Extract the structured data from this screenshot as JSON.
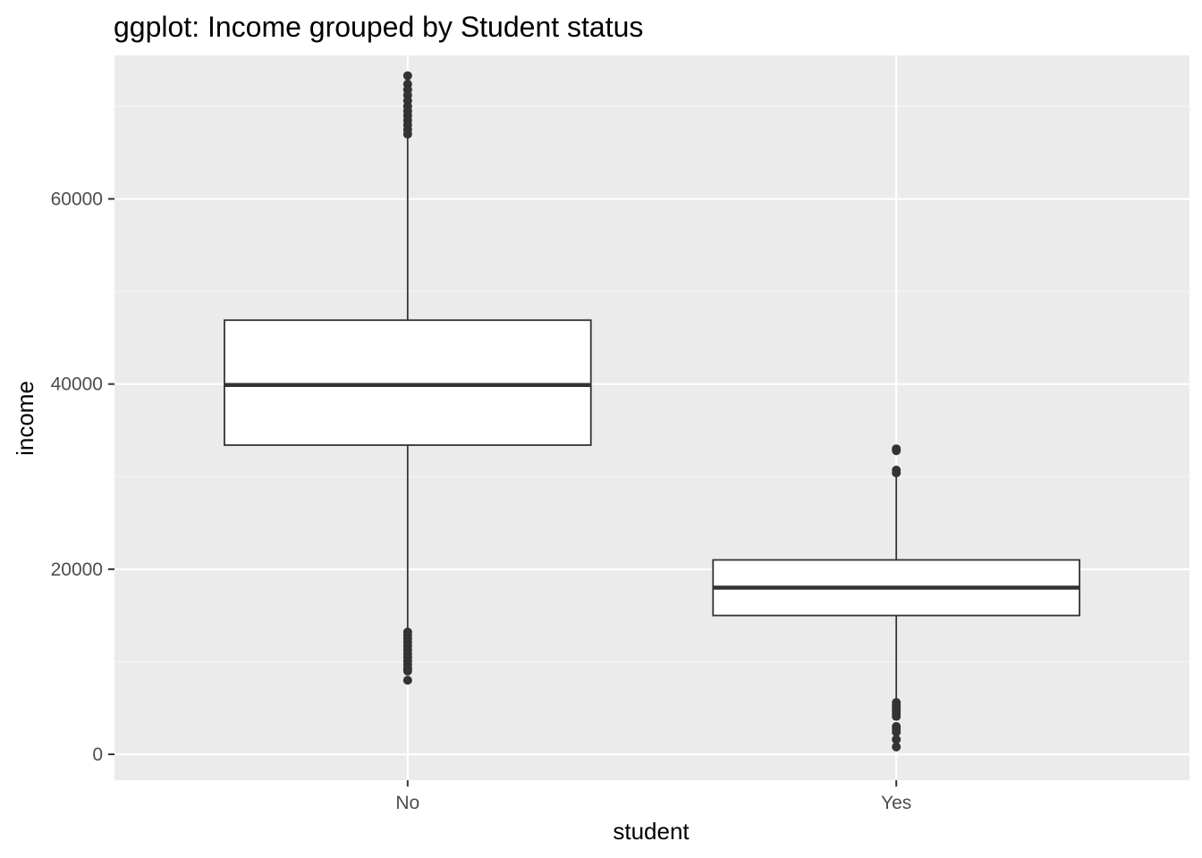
{
  "chart_data": {
    "type": "boxplot",
    "title": "ggplot: Income grouped by Student status",
    "xlabel": "student",
    "ylabel": "income",
    "categories": [
      "No",
      "Yes"
    ],
    "ylim": [
      -2800,
      75500
    ],
    "yticks": [
      0,
      20000,
      40000,
      60000
    ],
    "ytick_labels": [
      "0",
      "20000",
      "40000",
      "60000"
    ],
    "grid": true,
    "boxes": [
      {
        "category": "No",
        "lower_whisker": 13500,
        "q1": 33400,
        "median": 39900,
        "q3": 46900,
        "upper_whisker": 66800,
        "outliers": [
          73300,
          72400,
          71800,
          71200,
          70600,
          70000,
          69500,
          69000,
          68500,
          68000,
          67500,
          67000,
          13200,
          12900,
          12500,
          12100,
          11700,
          11300,
          10900,
          10500,
          10100,
          9700,
          9300,
          9000,
          8000
        ]
      },
      {
        "category": "Yes",
        "lower_whisker": 5900,
        "q1": 15000,
        "median": 18000,
        "q3": 21000,
        "upper_whisker": 30100,
        "outliers": [
          33000,
          32800,
          30700,
          30400,
          5600,
          5300,
          5000,
          4700,
          4400,
          4100,
          3000,
          2700,
          2400,
          1600,
          800
        ]
      }
    ],
    "colors": {
      "panel_background": "#ebebeb",
      "grid_major": "#ffffff",
      "grid_minor": "#f5f5f5",
      "box_fill": "#ffffff",
      "box_line": "#333333",
      "outlier": "#333333",
      "tick_label": "#4d4d4d"
    }
  }
}
